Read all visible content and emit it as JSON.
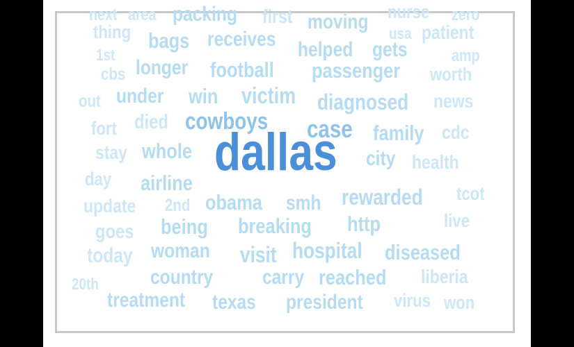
{
  "wordcloud": {
    "colors": {
      "primary": "#4a8fd8",
      "secondary": "#8ec3ea",
      "tertiary": "#b5dcf3",
      "faint": "#cce8f8"
    },
    "words": [
      {
        "text": "dallas",
        "weight": 5
      },
      {
        "text": "case",
        "weight": 3
      },
      {
        "text": "cowboys",
        "weight": 3
      },
      {
        "text": "passenger",
        "weight": 3
      },
      {
        "text": "football",
        "weight": 3
      },
      {
        "text": "victim",
        "weight": 3
      },
      {
        "text": "packing",
        "weight": 3
      },
      {
        "text": "family",
        "weight": 2
      },
      {
        "text": "diagnosed",
        "weight": 2
      },
      {
        "text": "hospital",
        "weight": 2
      },
      {
        "text": "breaking",
        "weight": 2
      },
      {
        "text": "rewarded",
        "weight": 2
      },
      {
        "text": "obama",
        "weight": 2
      },
      {
        "text": "whole",
        "weight": 2
      },
      {
        "text": "longer",
        "weight": 2
      },
      {
        "text": "receives",
        "weight": 2
      },
      {
        "text": "win",
        "weight": 2
      },
      {
        "text": "under",
        "weight": 2
      },
      {
        "text": "airline",
        "weight": 2
      },
      {
        "text": "being",
        "weight": 2
      },
      {
        "text": "woman",
        "weight": 2
      },
      {
        "text": "country",
        "weight": 2
      },
      {
        "text": "treatment",
        "weight": 2
      },
      {
        "text": "texas",
        "weight": 2
      },
      {
        "text": "president",
        "weight": 2
      },
      {
        "text": "reached",
        "weight": 2
      },
      {
        "text": "carry",
        "weight": 2
      },
      {
        "text": "visit",
        "weight": 2
      },
      {
        "text": "diseased",
        "weight": 2
      },
      {
        "text": "http",
        "weight": 2
      },
      {
        "text": "smh",
        "weight": 2
      },
      {
        "text": "helped",
        "weight": 2
      },
      {
        "text": "gets",
        "weight": 2
      },
      {
        "text": "moving",
        "weight": 2
      },
      {
        "text": "bags",
        "weight": 2
      },
      {
        "text": "city",
        "weight": 2
      },
      {
        "text": "health",
        "weight": 1
      },
      {
        "text": "news",
        "weight": 1
      },
      {
        "text": "cdc",
        "weight": 1
      },
      {
        "text": "died",
        "weight": 1
      },
      {
        "text": "fort",
        "weight": 1
      },
      {
        "text": "stay",
        "weight": 1
      },
      {
        "text": "update",
        "weight": 1
      },
      {
        "text": "goes",
        "weight": 1
      },
      {
        "text": "today",
        "weight": 1
      },
      {
        "text": "day",
        "weight": 1
      },
      {
        "text": "liberia",
        "weight": 1
      },
      {
        "text": "virus",
        "weight": 1
      },
      {
        "text": "won",
        "weight": 1
      },
      {
        "text": "tcot",
        "weight": 1
      },
      {
        "text": "live",
        "weight": 1
      },
      {
        "text": "2nd",
        "weight": 1
      },
      {
        "text": "20th",
        "weight": 1
      },
      {
        "text": "thing",
        "weight": 1
      },
      {
        "text": "first",
        "weight": 1
      },
      {
        "text": "patient",
        "weight": 1
      },
      {
        "text": "worth",
        "weight": 1
      },
      {
        "text": "cbs",
        "weight": 1
      },
      {
        "text": "out",
        "weight": 1
      },
      {
        "text": "1st",
        "weight": 1
      },
      {
        "text": "amp",
        "weight": 1
      },
      {
        "text": "usa",
        "weight": 1
      },
      {
        "text": "next",
        "weight": 1
      },
      {
        "text": "area",
        "weight": 1
      },
      {
        "text": "nurse",
        "weight": 1
      },
      {
        "text": "zero",
        "weight": 1
      }
    ]
  }
}
